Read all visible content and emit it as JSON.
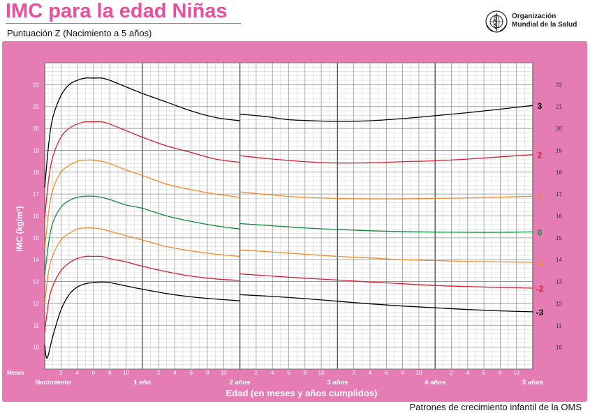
{
  "header": {
    "title": "IMC para la edad Niñas",
    "subtitle": "Puntuación Z (Nacimiento a 5 años)",
    "org_line1": "Organización",
    "org_line2": "Mundial de la Salud",
    "logo_icon": "who-emblem-icon"
  },
  "footer": {
    "text": "Patrones de crecimiento infantil de la OMS"
  },
  "colors": {
    "frame": "#e57cb4",
    "sd3": "#000000",
    "sd2": "#d42030",
    "sd1": "#f08a2a",
    "median": "#118a3a",
    "grid_fine": "#bfbfbf",
    "grid_major": "#555555"
  },
  "chart_data": {
    "type": "line",
    "title": "IMC para la edad Niñas",
    "subtitle": "Puntuación Z (Nacimiento a 5 años)",
    "xlabel": "Edad (en meses y años cumplidos)",
    "ylabel": "IMC (kg/m²)",
    "x_unit_label": "Meses",
    "xlim": [
      0,
      60
    ],
    "ylim": [
      9,
      23
    ],
    "y_ticks": [
      10,
      11,
      12,
      13,
      14,
      15,
      16,
      17,
      18,
      19,
      20,
      21,
      22
    ],
    "x_month_ticks": [
      "2",
      "4",
      "6",
      "8",
      "10"
    ],
    "x_year_labels": [
      {
        "month": 0,
        "label": "Nacimiento"
      },
      {
        "month": 12,
        "label": "1 año"
      },
      {
        "month": 24,
        "label": "2 años"
      },
      {
        "month": 36,
        "label": "3 años"
      },
      {
        "month": 48,
        "label": "4 años"
      },
      {
        "month": 60,
        "label": "5 años"
      }
    ],
    "grid": true,
    "segments": [
      {
        "from": 0,
        "to": 24
      },
      {
        "from": 24,
        "to": 60
      }
    ],
    "series": [
      {
        "name": "3",
        "color_key": "sd3",
        "points": [
          [
            0,
            17.3
          ],
          [
            0.5,
            19.3
          ],
          [
            1,
            20.5
          ],
          [
            2,
            21.5
          ],
          [
            3,
            22.0
          ],
          [
            4,
            22.2
          ],
          [
            5,
            22.3
          ],
          [
            6,
            22.3
          ],
          [
            7,
            22.3
          ],
          [
            8,
            22.2
          ],
          [
            10,
            21.9
          ],
          [
            12,
            21.6
          ],
          [
            15,
            21.2
          ],
          [
            18,
            20.8
          ],
          [
            21,
            20.5
          ],
          [
            24,
            20.35
          ]
        ]
      },
      {
        "name": "3",
        "color_key": "sd3",
        "points": [
          [
            24,
            20.65
          ],
          [
            27,
            20.55
          ],
          [
            30,
            20.4
          ],
          [
            33,
            20.35
          ],
          [
            36,
            20.32
          ],
          [
            40,
            20.35
          ],
          [
            44,
            20.45
          ],
          [
            48,
            20.58
          ],
          [
            52,
            20.72
          ],
          [
            56,
            20.88
          ],
          [
            60,
            21.05
          ]
        ]
      },
      {
        "name": "2",
        "color_key": "sd2",
        "points": [
          [
            0,
            15.9
          ],
          [
            0.5,
            17.7
          ],
          [
            1,
            18.7
          ],
          [
            2,
            19.6
          ],
          [
            3,
            20.0
          ],
          [
            4,
            20.2
          ],
          [
            5,
            20.3
          ],
          [
            6,
            20.3
          ],
          [
            7,
            20.3
          ],
          [
            8,
            20.2
          ],
          [
            10,
            19.9
          ],
          [
            12,
            19.6
          ],
          [
            15,
            19.2
          ],
          [
            18,
            18.9
          ],
          [
            21,
            18.6
          ],
          [
            24,
            18.45
          ]
        ]
      },
      {
        "name": "2",
        "color_key": "sd2",
        "points": [
          [
            24,
            18.75
          ],
          [
            28,
            18.6
          ],
          [
            32,
            18.48
          ],
          [
            36,
            18.42
          ],
          [
            40,
            18.43
          ],
          [
            44,
            18.48
          ],
          [
            48,
            18.52
          ],
          [
            52,
            18.6
          ],
          [
            56,
            18.7
          ],
          [
            60,
            18.8
          ]
        ]
      },
      {
        "name": "1",
        "color_key": "sd1",
        "points": [
          [
            0,
            14.5
          ],
          [
            0.5,
            16.2
          ],
          [
            1,
            17.2
          ],
          [
            2,
            18.0
          ],
          [
            3,
            18.3
          ],
          [
            4,
            18.5
          ],
          [
            5,
            18.55
          ],
          [
            6,
            18.55
          ],
          [
            7,
            18.5
          ],
          [
            8,
            18.4
          ],
          [
            10,
            18.1
          ],
          [
            12,
            17.85
          ],
          [
            15,
            17.45
          ],
          [
            18,
            17.2
          ],
          [
            21,
            17.0
          ],
          [
            24,
            16.85
          ]
        ]
      },
      {
        "name": "1",
        "color_key": "sd1",
        "points": [
          [
            24,
            17.1
          ],
          [
            28,
            16.95
          ],
          [
            32,
            16.85
          ],
          [
            36,
            16.8
          ],
          [
            40,
            16.78
          ],
          [
            44,
            16.78
          ],
          [
            48,
            16.8
          ],
          [
            52,
            16.82
          ],
          [
            56,
            16.86
          ],
          [
            60,
            16.9
          ]
        ]
      },
      {
        "name": "0",
        "color_key": "median",
        "points": [
          [
            0,
            13.3
          ],
          [
            0.5,
            14.8
          ],
          [
            1,
            15.7
          ],
          [
            2,
            16.4
          ],
          [
            3,
            16.7
          ],
          [
            4,
            16.85
          ],
          [
            5,
            16.9
          ],
          [
            6,
            16.9
          ],
          [
            7,
            16.85
          ],
          [
            8,
            16.75
          ],
          [
            10,
            16.5
          ],
          [
            12,
            16.35
          ],
          [
            15,
            16.0
          ],
          [
            18,
            15.75
          ],
          [
            21,
            15.55
          ],
          [
            24,
            15.4
          ]
        ]
      },
      {
        "name": "0",
        "color_key": "median",
        "points": [
          [
            24,
            15.65
          ],
          [
            28,
            15.55
          ],
          [
            32,
            15.45
          ],
          [
            36,
            15.38
          ],
          [
            40,
            15.32
          ],
          [
            44,
            15.28
          ],
          [
            48,
            15.26
          ],
          [
            52,
            15.25
          ],
          [
            56,
            15.25
          ],
          [
            60,
            15.27
          ]
        ]
      },
      {
        "name": "-1",
        "color_key": "sd1",
        "points": [
          [
            0,
            12.0
          ],
          [
            0.5,
            13.5
          ],
          [
            1,
            14.2
          ],
          [
            2,
            14.9
          ],
          [
            3,
            15.2
          ],
          [
            4,
            15.4
          ],
          [
            5,
            15.45
          ],
          [
            6,
            15.45
          ],
          [
            7,
            15.4
          ],
          [
            8,
            15.3
          ],
          [
            10,
            15.1
          ],
          [
            12,
            14.9
          ],
          [
            15,
            14.6
          ],
          [
            18,
            14.4
          ],
          [
            21,
            14.25
          ],
          [
            24,
            14.15
          ]
        ]
      },
      {
        "name": "-1",
        "color_key": "sd1",
        "points": [
          [
            24,
            14.45
          ],
          [
            28,
            14.35
          ],
          [
            32,
            14.25
          ],
          [
            36,
            14.15
          ],
          [
            40,
            14.08
          ],
          [
            44,
            14.0
          ],
          [
            48,
            13.96
          ],
          [
            52,
            13.92
          ],
          [
            56,
            13.9
          ],
          [
            60,
            13.88
          ]
        ]
      },
      {
        "name": "-2",
        "color_key": "sd2",
        "points": [
          [
            0,
            10.7
          ],
          [
            0.5,
            12.1
          ],
          [
            1,
            12.8
          ],
          [
            2,
            13.5
          ],
          [
            3,
            13.85
          ],
          [
            4,
            14.05
          ],
          [
            5,
            14.15
          ],
          [
            6,
            14.15
          ],
          [
            7,
            14.15
          ],
          [
            8,
            14.05
          ],
          [
            10,
            13.9
          ],
          [
            12,
            13.7
          ],
          [
            15,
            13.45
          ],
          [
            18,
            13.25
          ],
          [
            21,
            13.12
          ],
          [
            24,
            13.05
          ]
        ]
      },
      {
        "name": "-2",
        "color_key": "sd2",
        "points": [
          [
            24,
            13.35
          ],
          [
            28,
            13.25
          ],
          [
            32,
            13.15
          ],
          [
            36,
            13.07
          ],
          [
            40,
            12.98
          ],
          [
            44,
            12.9
          ],
          [
            48,
            12.82
          ],
          [
            52,
            12.77
          ],
          [
            56,
            12.73
          ],
          [
            60,
            12.7
          ]
        ]
      },
      {
        "name": "-3",
        "color_key": "sd3",
        "points": [
          [
            0,
            10.1
          ],
          [
            0.3,
            9.5
          ],
          [
            1,
            10.5
          ],
          [
            2,
            11.7
          ],
          [
            3,
            12.4
          ],
          [
            4,
            12.75
          ],
          [
            5,
            12.9
          ],
          [
            6,
            12.95
          ],
          [
            7,
            12.98
          ],
          [
            8,
            12.95
          ],
          [
            10,
            12.8
          ],
          [
            12,
            12.65
          ],
          [
            15,
            12.45
          ],
          [
            18,
            12.3
          ],
          [
            21,
            12.2
          ],
          [
            24,
            12.12
          ]
        ]
      },
      {
        "name": "-3",
        "color_key": "sd3",
        "points": [
          [
            24,
            12.4
          ],
          [
            28,
            12.32
          ],
          [
            32,
            12.22
          ],
          [
            36,
            12.1
          ],
          [
            40,
            11.98
          ],
          [
            44,
            11.88
          ],
          [
            48,
            11.8
          ],
          [
            52,
            11.72
          ],
          [
            56,
            11.66
          ],
          [
            60,
            11.62
          ]
        ]
      }
    ],
    "end_labels": [
      {
        "label": "3",
        "color_key": "sd3",
        "y": 21.05
      },
      {
        "label": "2",
        "color_key": "sd2",
        "y": 18.8
      },
      {
        "label": "1",
        "color_key": "sd1",
        "y": 16.9
      },
      {
        "label": "0",
        "color_key": "median",
        "y": 15.27
      },
      {
        "label": "-1",
        "color_key": "sd1",
        "y": 13.88
      },
      {
        "label": "-2",
        "color_key": "sd2",
        "y": 12.7
      },
      {
        "label": "-3",
        "color_key": "sd3",
        "y": 11.62
      }
    ]
  }
}
